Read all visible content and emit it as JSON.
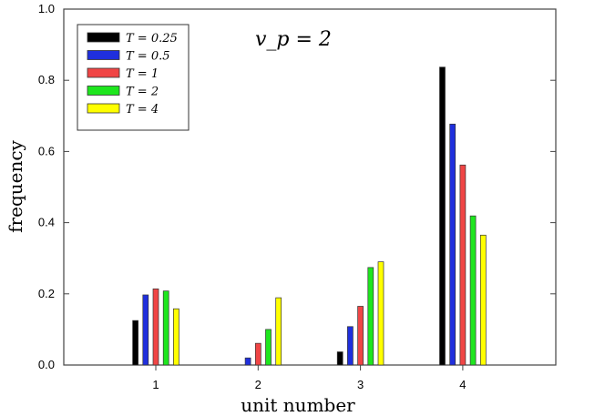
{
  "chart_data": {
    "type": "bar",
    "xlabel": "unit number",
    "ylabel": "frequency",
    "annotation": "v_p = 2",
    "categories": [
      "1",
      "2",
      "3",
      "4"
    ],
    "ylim": [
      0,
      1.0
    ],
    "yticks": [
      "0.0",
      "0.2",
      "0.4",
      "0.6",
      "0.8",
      "1.0"
    ],
    "grid": false,
    "legend_position": "top-left",
    "series": [
      {
        "name": "T = 0.25",
        "color": "#000000",
        "values": [
          0.125,
          0.0,
          0.037,
          0.837
        ]
      },
      {
        "name": "T = 0.5",
        "color": "#1f2fdd",
        "values": [
          0.197,
          0.02,
          0.108,
          0.677
        ]
      },
      {
        "name": "T = 1",
        "color": "#f04545",
        "values": [
          0.214,
          0.061,
          0.165,
          0.562
        ]
      },
      {
        "name": "T = 2",
        "color": "#1ee61e",
        "values": [
          0.208,
          0.1,
          0.274,
          0.419
        ]
      },
      {
        "name": "T = 4",
        "color": "#ffff00",
        "values": [
          0.158,
          0.189,
          0.29,
          0.365
        ]
      }
    ]
  }
}
